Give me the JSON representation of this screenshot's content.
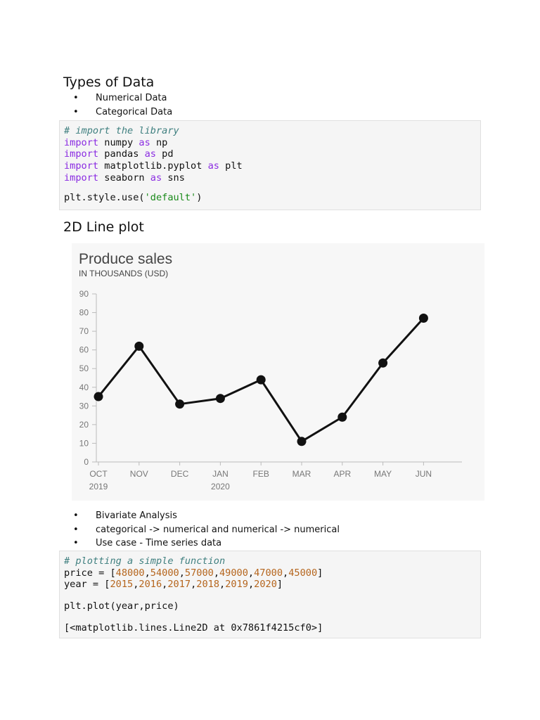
{
  "section1": {
    "heading": "Types of Data",
    "bullets": [
      "Numerical Data",
      "Categorical Data"
    ]
  },
  "code1": {
    "comment": "# import the library",
    "imports": [
      {
        "kw": "import",
        "mod": " numpy ",
        "as": "as",
        "alias": " np"
      },
      {
        "kw": "import",
        "mod": " pandas ",
        "as": "as",
        "alias": " pd"
      },
      {
        "kw": "import",
        "mod": " matplotlib.pyplot ",
        "as": "as",
        "alias": " plt"
      },
      {
        "kw": "import",
        "mod": " seaborn ",
        "as": "as",
        "alias": " sns"
      }
    ],
    "style_prefix": "plt.style.use(",
    "style_arg": "'default'",
    "style_suffix": ")"
  },
  "section2": {
    "heading": "2D Line plot"
  },
  "chart_data": {
    "type": "line",
    "title": "Produce sales",
    "subtitle": "IN THOUSANDS (USD)",
    "categories": [
      "OCT",
      "NOV",
      "DEC",
      "JAN",
      "FEB",
      "MAR",
      "APR",
      "MAY",
      "JUN"
    ],
    "year_labels": [
      "2019",
      "",
      "",
      "2020",
      "",
      "",
      "",
      "",
      ""
    ],
    "values": [
      35,
      62,
      31,
      34,
      44,
      11,
      24,
      53,
      77
    ],
    "ylim": [
      0,
      90
    ],
    "yticks": [
      0,
      10,
      20,
      30,
      40,
      50,
      60,
      70,
      80,
      90
    ],
    "grid": false,
    "line_color": "#111111"
  },
  "section3": {
    "bullets": [
      "Bivariate Analysis",
      "categorical -> numerical and numerical -> numerical",
      "Use case - Time series data"
    ]
  },
  "code2": {
    "comment": "# plotting a simple function",
    "price_prefix": "price = [",
    "price_values": [
      "48000",
      "54000",
      "57000",
      "49000",
      "47000",
      "45000"
    ],
    "year_prefix": "year = [",
    "year_values": [
      "2015",
      "2016",
      "2017",
      "2018",
      "2019",
      "2020"
    ],
    "close": "]",
    "sep": ",",
    "plot_call": "plt.plot(year,price)",
    "output": "[<matplotlib.lines.Line2D at 0x7861f4215cf0>]"
  }
}
